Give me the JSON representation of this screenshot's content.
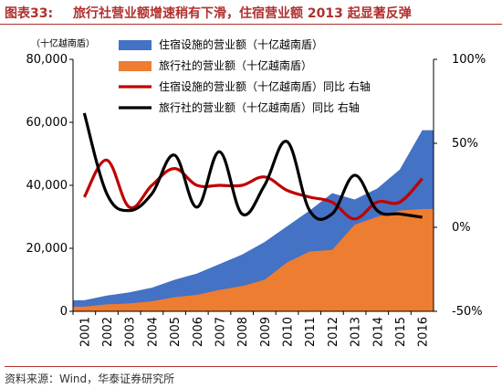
{
  "figure": {
    "label": "图表33:",
    "title": "旅行社营业额增速稍有下滑，住宿营业额 2013 起显著反弹"
  },
  "source": "资料来源：Wind，华泰证券研究所",
  "chart_data": {
    "type": "area",
    "x": [
      "2001",
      "2002",
      "2003",
      "2004",
      "2005",
      "2006",
      "2007",
      "2008",
      "2009",
      "2010",
      "2011",
      "2012",
      "2013",
      "2014",
      "2015",
      "2016"
    ],
    "ylabel_left_unit": "（十亿越南盾）",
    "ylim_left": [
      0,
      80000
    ],
    "yticks_left": [
      "0",
      "20,000",
      "40,000",
      "60,000",
      "80,000"
    ],
    "ylim_right": [
      -50,
      100
    ],
    "yticks_right": [
      "-50%",
      "0%",
      "50%",
      "100%"
    ],
    "grid": false,
    "legend_position": "top-right",
    "colors": {
      "accommodation": "#4472c4",
      "travel": "#ed7d31",
      "accommodation_yoy": "#c00000",
      "travel_yoy": "#000000"
    },
    "series": [
      {
        "name": "住宿设施的营业额（十亿越南盾）",
        "kind": "area",
        "axis": "left",
        "values": [
          3500,
          5000,
          6000,
          7500,
          10000,
          12000,
          15000,
          18000,
          22000,
          27000,
          32000,
          37500,
          35500,
          39000,
          45000,
          57500
        ]
      },
      {
        "name": "旅行社的营业额（十亿越南盾）",
        "kind": "area",
        "axis": "left",
        "values": [
          1500,
          2200,
          2500,
          3200,
          4500,
          5200,
          6800,
          8000,
          10000,
          15500,
          19000,
          19500,
          27500,
          30000,
          32000,
          32500
        ]
      },
      {
        "name": "住宿设施的营业额（十亿越南盾）同比 右轴",
        "kind": "line",
        "axis": "right",
        "values": [
          18,
          40,
          12,
          25,
          35,
          25,
          25,
          25,
          30,
          22,
          18,
          15,
          5,
          15,
          15,
          29
        ]
      },
      {
        "name": "旅行社的营业额（十亿越南盾）同比 右轴",
        "kind": "line",
        "axis": "right",
        "values": [
          68,
          20,
          10,
          20,
          43,
          12,
          45,
          8,
          25,
          51,
          10,
          8,
          31,
          10,
          8,
          6
        ]
      }
    ]
  }
}
